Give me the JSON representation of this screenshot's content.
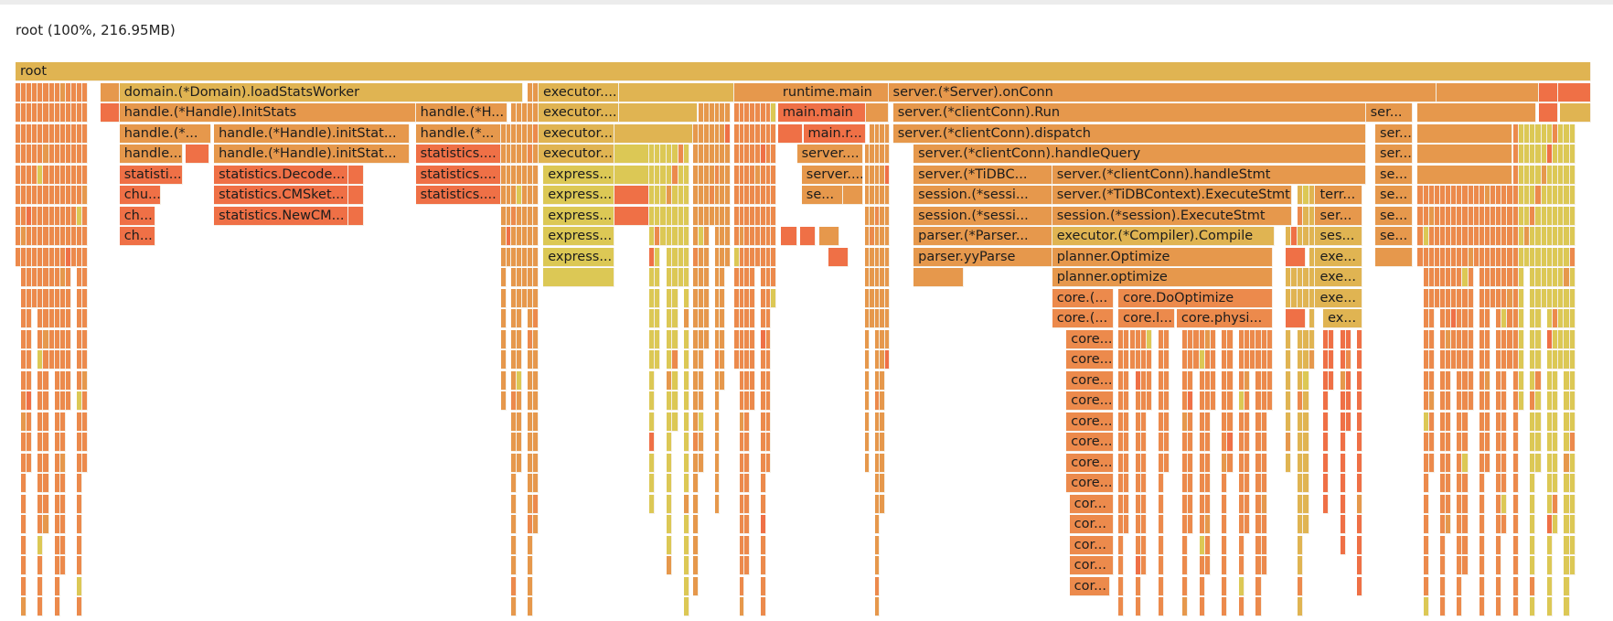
{
  "header": {
    "title": "root (100%, 216.95MB)"
  },
  "colors": {
    "yellow": "#e0b452",
    "olive": "#dcc855",
    "orange": "#e6984c",
    "dorange": "#ec8a4c",
    "red": "#ef7046"
  },
  "chart_data": {
    "type": "flamegraph",
    "title": "root (100%, 216.95MB)",
    "unit": "MB",
    "total": 216.95,
    "frames": [
      {
        "d": 0,
        "s": 0,
        "w": 100,
        "c": "yellow",
        "label": "root"
      },
      {
        "d": 1,
        "s": 5.4,
        "w": 1.2,
        "c": "orange",
        "label": ""
      },
      {
        "d": 1,
        "s": 6.6,
        "w": 25.6,
        "c": "yellow",
        "label": "domain.(*Domain).loadStatsWorker"
      },
      {
        "d": 1,
        "s": 33.2,
        "w": 5.1,
        "c": "yellow",
        "label": "executor...."
      },
      {
        "d": 1,
        "s": 38.3,
        "w": 7.3,
        "c": "yellow",
        "label": ""
      },
      {
        "d": 1,
        "s": 45.6,
        "w": 3.0,
        "c": "orange",
        "label": ""
      },
      {
        "d": 1,
        "s": 48.4,
        "w": 7.0,
        "c": "orange",
        "label": "runtime.main"
      },
      {
        "d": 1,
        "s": 55.4,
        "w": 34.8,
        "c": "orange",
        "label": "server.(*Server).onConn"
      },
      {
        "d": 1,
        "s": 90.2,
        "w": 6.5,
        "c": "orange",
        "label": ""
      },
      {
        "d": 1,
        "s": 96.7,
        "w": 1.2,
        "c": "red",
        "label": ""
      },
      {
        "d": 1,
        "s": 97.9,
        "w": 2.1,
        "c": "red",
        "label": ""
      },
      {
        "d": 2,
        "s": 5.4,
        "w": 1.2,
        "c": "red",
        "label": ""
      },
      {
        "d": 2,
        "s": 6.6,
        "w": 18.8,
        "c": "orange",
        "label": "handle.(*Handle).InitStats"
      },
      {
        "d": 2,
        "s": 25.4,
        "w": 5.8,
        "c": "orange",
        "label": "handle.(*H..."
      },
      {
        "d": 2,
        "s": 33.2,
        "w": 5.1,
        "c": "yellow",
        "label": "executor...."
      },
      {
        "d": 2,
        "s": 38.3,
        "w": 5.0,
        "c": "yellow",
        "label": ""
      },
      {
        "d": 2,
        "s": 48.4,
        "w": 5.6,
        "c": "red",
        "label": "main.main"
      },
      {
        "d": 2,
        "s": 54.0,
        "w": 1.4,
        "c": "orange",
        "label": ""
      },
      {
        "d": 2,
        "s": 55.7,
        "w": 30.0,
        "c": "orange",
        "label": "server.(*clientConn).Run"
      },
      {
        "d": 2,
        "s": 85.7,
        "w": 3.0,
        "c": "orange",
        "label": "ser..."
      },
      {
        "d": 2,
        "s": 89.0,
        "w": 7.5,
        "c": "orange",
        "label": ""
      },
      {
        "d": 2,
        "s": 96.7,
        "w": 1.2,
        "c": "red",
        "label": ""
      },
      {
        "d": 2,
        "s": 98.0,
        "w": 2.0,
        "c": "yellow",
        "label": ""
      },
      {
        "d": 3,
        "s": 6.6,
        "w": 5.8,
        "c": "orange",
        "label": "handle.(*..."
      },
      {
        "d": 3,
        "s": 12.6,
        "w": 12.4,
        "c": "orange",
        "label": "handle.(*Handle).initStat..."
      },
      {
        "d": 3,
        "s": 25.4,
        "w": 5.4,
        "c": "orange",
        "label": "handle.(*..."
      },
      {
        "d": 3,
        "s": 33.2,
        "w": 4.8,
        "c": "yellow",
        "label": "executor..."
      },
      {
        "d": 3,
        "s": 38.0,
        "w": 5.0,
        "c": "yellow",
        "label": ""
      },
      {
        "d": 3,
        "s": 48.4,
        "w": 1.6,
        "c": "red",
        "label": ""
      },
      {
        "d": 3,
        "s": 50.0,
        "w": 4.0,
        "c": "red",
        "label": "main.r..."
      },
      {
        "d": 3,
        "s": 55.7,
        "w": 30.0,
        "c": "orange",
        "label": "server.(*clientConn).dispatch"
      },
      {
        "d": 3,
        "s": 86.3,
        "w": 2.4,
        "c": "orange",
        "label": "ser..."
      },
      {
        "d": 3,
        "s": 89.0,
        "w": 6.0,
        "c": "orange",
        "label": ""
      },
      {
        "d": 4,
        "s": 6.6,
        "w": 4.0,
        "c": "orange",
        "label": "handle..."
      },
      {
        "d": 4,
        "s": 10.8,
        "w": 1.5,
        "c": "red",
        "label": ""
      },
      {
        "d": 4,
        "s": 12.6,
        "w": 12.4,
        "c": "orange",
        "label": "handle.(*Handle).initStat..."
      },
      {
        "d": 4,
        "s": 25.4,
        "w": 5.4,
        "c": "red",
        "label": "statistics...."
      },
      {
        "d": 4,
        "s": 33.2,
        "w": 4.8,
        "c": "yellow",
        "label": "executor..."
      },
      {
        "d": 4,
        "s": 38.0,
        "w": 2.2,
        "c": "olive",
        "label": ""
      },
      {
        "d": 4,
        "s": 49.6,
        "w": 4.2,
        "c": "orange",
        "label": "server...."
      },
      {
        "d": 4,
        "s": 57.0,
        "w": 28.7,
        "c": "orange",
        "label": "server.(*clientConn).handleQuery"
      },
      {
        "d": 4,
        "s": 86.3,
        "w": 2.4,
        "c": "orange",
        "label": "ser..."
      },
      {
        "d": 4,
        "s": 89.0,
        "w": 6.0,
        "c": "orange",
        "label": ""
      },
      {
        "d": 5,
        "s": 6.6,
        "w": 4.0,
        "c": "red",
        "label": "statisti..."
      },
      {
        "d": 5,
        "s": 12.6,
        "w": 8.5,
        "c": "red",
        "label": "statistics.Decode..."
      },
      {
        "d": 5,
        "s": 21.1,
        "w": 1.0,
        "c": "red",
        "label": ""
      },
      {
        "d": 5,
        "s": 25.4,
        "w": 5.4,
        "c": "red",
        "label": "statistics...."
      },
      {
        "d": 5,
        "s": 33.5,
        "w": 4.5,
        "c": "olive",
        "label": "express..."
      },
      {
        "d": 5,
        "s": 38.0,
        "w": 2.2,
        "c": "olive",
        "label": ""
      },
      {
        "d": 5,
        "s": 49.9,
        "w": 3.9,
        "c": "orange",
        "label": "server...."
      },
      {
        "d": 5,
        "s": 57.0,
        "w": 8.8,
        "c": "orange",
        "label": "server.(*TiDBC..."
      },
      {
        "d": 5,
        "s": 65.8,
        "w": 19.9,
        "c": "orange",
        "label": "server.(*clientConn).handleStmt"
      },
      {
        "d": 5,
        "s": 86.3,
        "w": 2.4,
        "c": "orange",
        "label": "se..."
      },
      {
        "d": 5,
        "s": 89.0,
        "w": 6.0,
        "c": "orange",
        "label": ""
      },
      {
        "d": 6,
        "s": 6.6,
        "w": 2.6,
        "c": "red",
        "label": "chu..."
      },
      {
        "d": 6,
        "s": 12.6,
        "w": 8.5,
        "c": "red",
        "label": "statistics.CMSket..."
      },
      {
        "d": 6,
        "s": 21.1,
        "w": 1.0,
        "c": "red",
        "label": ""
      },
      {
        "d": 6,
        "s": 25.4,
        "w": 5.4,
        "c": "red",
        "label": "statistics...."
      },
      {
        "d": 6,
        "s": 33.5,
        "w": 4.5,
        "c": "olive",
        "label": "express..."
      },
      {
        "d": 6,
        "s": 38.0,
        "w": 2.2,
        "c": "red",
        "label": ""
      },
      {
        "d": 6,
        "s": 49.9,
        "w": 2.6,
        "c": "orange",
        "label": "se..."
      },
      {
        "d": 6,
        "s": 52.5,
        "w": 1.3,
        "c": "orange",
        "label": ""
      },
      {
        "d": 6,
        "s": 57.0,
        "w": 8.8,
        "c": "orange",
        "label": "session.(*sessi..."
      },
      {
        "d": 6,
        "s": 65.8,
        "w": 15.2,
        "c": "orange",
        "label": "server.(*TiDBContext).ExecuteStmt"
      },
      {
        "d": 6,
        "s": 82.5,
        "w": 3.0,
        "c": "orange",
        "label": "terr..."
      },
      {
        "d": 6,
        "s": 86.3,
        "w": 2.4,
        "c": "orange",
        "label": "se..."
      },
      {
        "d": 7,
        "s": 6.6,
        "w": 2.3,
        "c": "red",
        "label": "ch..."
      },
      {
        "d": 7,
        "s": 12.6,
        "w": 8.5,
        "c": "red",
        "label": "statistics.NewCM..."
      },
      {
        "d": 7,
        "s": 21.1,
        "w": 1.0,
        "c": "red",
        "label": ""
      },
      {
        "d": 7,
        "s": 33.5,
        "w": 4.5,
        "c": "olive",
        "label": "express..."
      },
      {
        "d": 7,
        "s": 38.0,
        "w": 2.2,
        "c": "red",
        "label": ""
      },
      {
        "d": 7,
        "s": 57.0,
        "w": 8.8,
        "c": "orange",
        "label": "session.(*sessi..."
      },
      {
        "d": 7,
        "s": 65.8,
        "w": 15.2,
        "c": "orange",
        "label": "session.(*session).ExecuteStmt"
      },
      {
        "d": 7,
        "s": 82.5,
        "w": 3.0,
        "c": "orange",
        "label": "ser..."
      },
      {
        "d": 7,
        "s": 86.3,
        "w": 2.4,
        "c": "orange",
        "label": "se..."
      },
      {
        "d": 8,
        "s": 6.6,
        "w": 2.3,
        "c": "red",
        "label": "ch..."
      },
      {
        "d": 8,
        "s": 33.5,
        "w": 4.5,
        "c": "olive",
        "label": "express..."
      },
      {
        "d": 8,
        "s": 48.6,
        "w": 1.0,
        "c": "red",
        "label": ""
      },
      {
        "d": 8,
        "s": 49.8,
        "w": 1.0,
        "c": "red",
        "label": ""
      },
      {
        "d": 8,
        "s": 51.0,
        "w": 1.3,
        "c": "orange",
        "label": ""
      },
      {
        "d": 8,
        "s": 57.0,
        "w": 8.8,
        "c": "orange",
        "label": "parser.(*Parser..."
      },
      {
        "d": 8,
        "s": 65.8,
        "w": 14.1,
        "c": "yellow",
        "label": "executor.(*Compiler).Compile"
      },
      {
        "d": 8,
        "s": 82.5,
        "w": 3.0,
        "c": "yellow",
        "label": "ses..."
      },
      {
        "d": 8,
        "s": 86.3,
        "w": 2.4,
        "c": "orange",
        "label": "se..."
      },
      {
        "d": 9,
        "s": 33.5,
        "w": 4.5,
        "c": "olive",
        "label": "express..."
      },
      {
        "d": 9,
        "s": 51.6,
        "w": 1.3,
        "c": "red",
        "label": ""
      },
      {
        "d": 9,
        "s": 57.0,
        "w": 8.8,
        "c": "orange",
        "label": "parser.yyParse"
      },
      {
        "d": 9,
        "s": 65.8,
        "w": 14.0,
        "c": "orange",
        "label": "planner.Optimize"
      },
      {
        "d": 9,
        "s": 80.6,
        "w": 1.3,
        "c": "red",
        "label": ""
      },
      {
        "d": 9,
        "s": 82.5,
        "w": 3.0,
        "c": "yellow",
        "label": "exe..."
      },
      {
        "d": 9,
        "s": 86.3,
        "w": 2.4,
        "c": "orange",
        "label": ""
      },
      {
        "d": 10,
        "s": 33.5,
        "w": 4.5,
        "c": "olive",
        "label": ""
      },
      {
        "d": 10,
        "s": 57.0,
        "w": 3.2,
        "c": "orange",
        "label": ""
      },
      {
        "d": 10,
        "s": 65.8,
        "w": 14.0,
        "c": "orange",
        "label": "planner.optimize"
      },
      {
        "d": 10,
        "s": 82.5,
        "w": 3.0,
        "c": "yellow",
        "label": "exe..."
      },
      {
        "d": 11,
        "s": 65.8,
        "w": 3.9,
        "c": "dorange",
        "label": "core.(..."
      },
      {
        "d": 11,
        "s": 70.0,
        "w": 9.8,
        "c": "dorange",
        "label": "core.DoOptimize"
      },
      {
        "d": 11,
        "s": 82.5,
        "w": 3.0,
        "c": "yellow",
        "label": "exe..."
      },
      {
        "d": 12,
        "s": 65.8,
        "w": 3.9,
        "c": "dorange",
        "label": "core.(..."
      },
      {
        "d": 12,
        "s": 70.0,
        "w": 3.6,
        "c": "dorange",
        "label": "core.l..."
      },
      {
        "d": 12,
        "s": 73.7,
        "w": 6.1,
        "c": "dorange",
        "label": "core.physi..."
      },
      {
        "d": 12,
        "s": 80.6,
        "w": 1.3,
        "c": "red",
        "label": ""
      },
      {
        "d": 12,
        "s": 83.0,
        "w": 2.5,
        "c": "yellow",
        "label": "ex..."
      },
      {
        "d": 13,
        "s": 66.7,
        "w": 3.0,
        "c": "dorange",
        "label": "core..."
      },
      {
        "d": 14,
        "s": 66.7,
        "w": 3.0,
        "c": "dorange",
        "label": "core..."
      },
      {
        "d": 15,
        "s": 66.7,
        "w": 3.0,
        "c": "dorange",
        "label": "core..."
      },
      {
        "d": 16,
        "s": 66.7,
        "w": 3.0,
        "c": "dorange",
        "label": "core..."
      },
      {
        "d": 17,
        "s": 66.7,
        "w": 3.0,
        "c": "dorange",
        "label": "core..."
      },
      {
        "d": 18,
        "s": 66.7,
        "w": 3.0,
        "c": "dorange",
        "label": "core..."
      },
      {
        "d": 19,
        "s": 66.7,
        "w": 3.0,
        "c": "dorange",
        "label": "core..."
      },
      {
        "d": 20,
        "s": 66.7,
        "w": 3.0,
        "c": "dorange",
        "label": "core..."
      },
      {
        "d": 21,
        "s": 66.9,
        "w": 2.8,
        "c": "dorange",
        "label": "cor..."
      },
      {
        "d": 22,
        "s": 66.9,
        "w": 2.8,
        "c": "dorange",
        "label": "cor..."
      },
      {
        "d": 23,
        "s": 66.9,
        "w": 2.8,
        "c": "dorange",
        "label": "cor..."
      },
      {
        "d": 24,
        "s": 66.9,
        "w": 2.8,
        "c": "dorange",
        "label": "cor..."
      },
      {
        "d": 25,
        "s": 66.9,
        "w": 2.6,
        "c": "dorange",
        "label": "cor..."
      }
    ],
    "columns": [
      {
        "s": 0.0,
        "w": 4.6,
        "depth": 27,
        "c": "dorange"
      },
      {
        "s": 30.8,
        "w": 2.4,
        "depth": 27,
        "c": "orange"
      },
      {
        "s": 40.2,
        "w": 2.6,
        "depth": 24,
        "c": "olive"
      },
      {
        "s": 43.0,
        "w": 2.4,
        "depth": 22,
        "c": "orange"
      },
      {
        "s": 45.6,
        "w": 2.7,
        "depth": 27,
        "c": "dorange"
      },
      {
        "s": 53.9,
        "w": 1.6,
        "depth": 24,
        "c": "orange"
      },
      {
        "s": 70.0,
        "w": 3.6,
        "depth": 27,
        "c": "dorange"
      },
      {
        "s": 73.7,
        "w": 6.1,
        "depth": 27,
        "c": "dorange"
      },
      {
        "s": 80.6,
        "w": 1.9,
        "depth": 27,
        "c": "yellow"
      },
      {
        "s": 83.0,
        "w": 2.5,
        "depth": 22,
        "c": "red"
      },
      {
        "s": 89.0,
        "w": 6.4,
        "depth": 27,
        "c": "dorange"
      },
      {
        "s": 95.4,
        "w": 3.6,
        "depth": 27,
        "c": "olive"
      }
    ]
  }
}
